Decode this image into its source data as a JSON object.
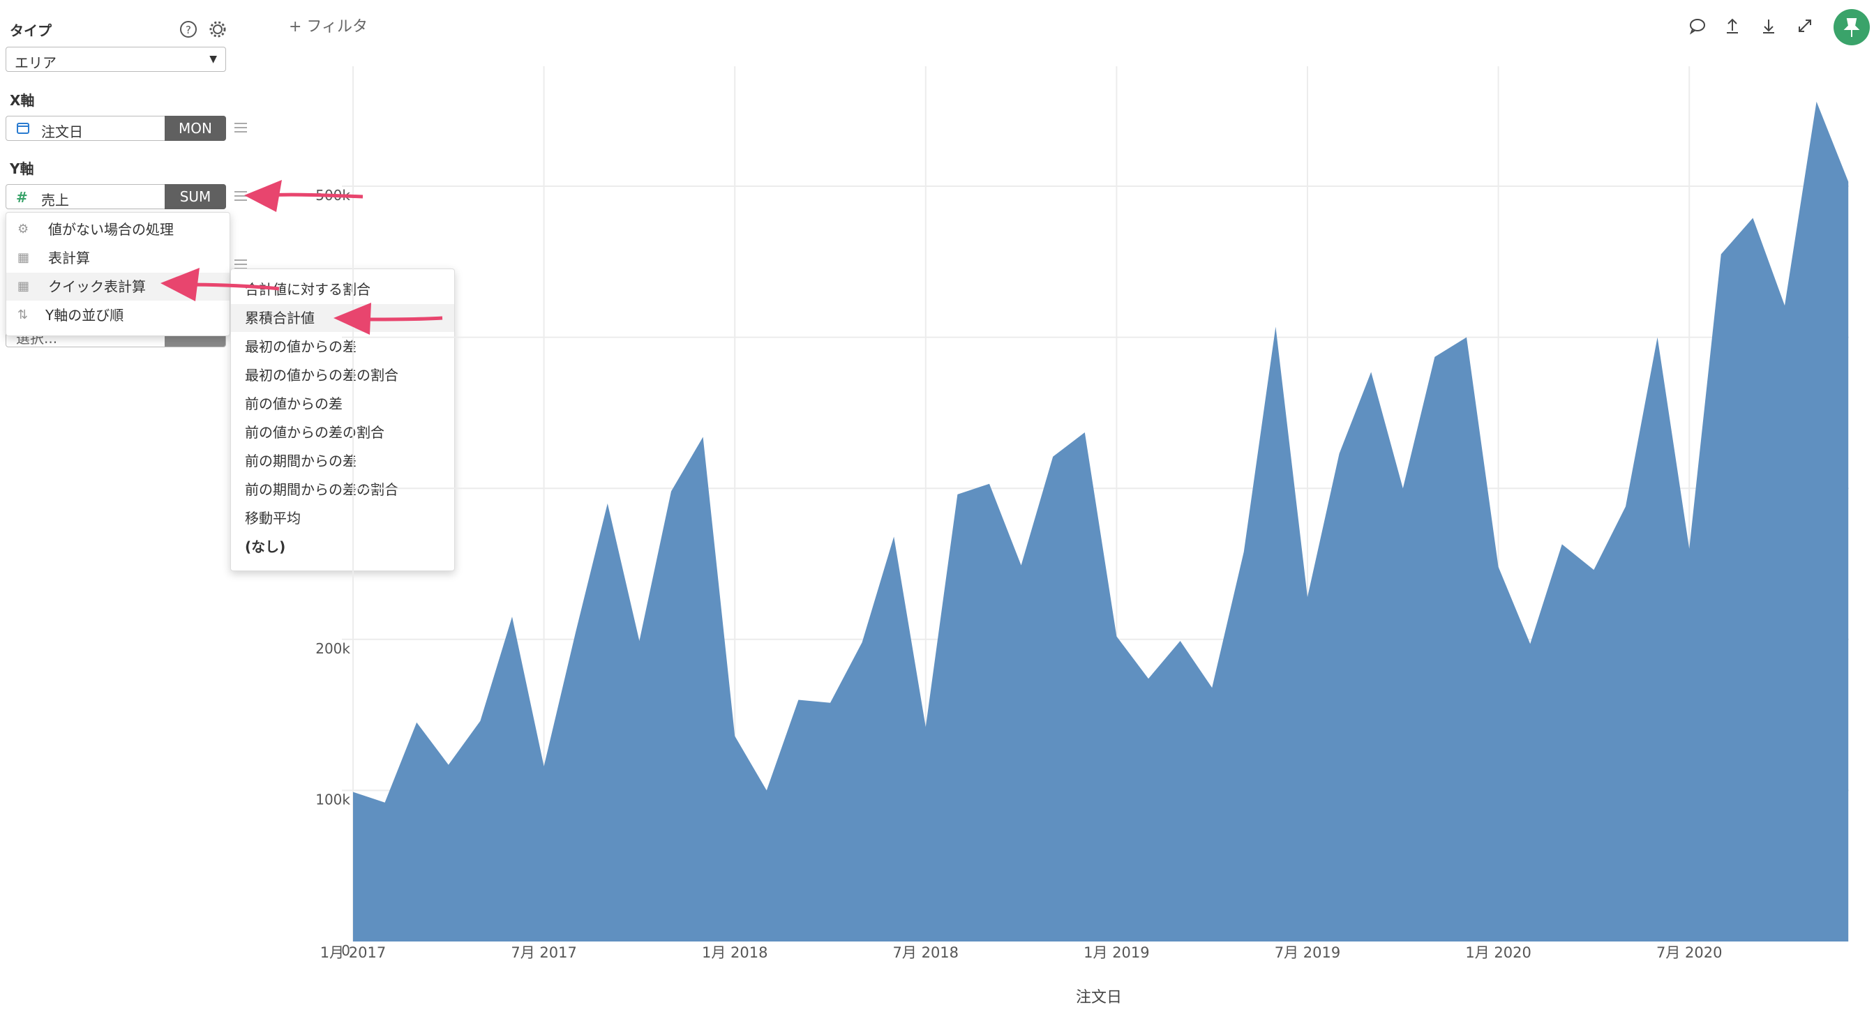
{
  "toolbar": {
    "filter_label": "+ フィルタ",
    "icons": [
      "comment-icon",
      "upload-icon",
      "download-icon",
      "expand-icon",
      "pin-icon"
    ],
    "pin_color": "#3aa36a"
  },
  "panel": {
    "type_label": "タイプ",
    "type_value": "エリア",
    "x_label": "X軸",
    "x_field": "注文日",
    "x_agg": "MON",
    "y_label": "Y軸",
    "y_field": "売上",
    "y_agg": "SUM",
    "hidden_field_text": "選択..."
  },
  "context_menu": {
    "items": [
      {
        "icon": "gear-icon",
        "label": "値がない場合の処理"
      },
      {
        "icon": "table-icon",
        "label": "表計算"
      },
      {
        "icon": "table-icon",
        "label": "クイック表計算"
      },
      {
        "icon": "sort-icon",
        "label": "Y軸の並び順"
      }
    ]
  },
  "submenu": {
    "items": [
      "合計値に対する割合",
      "累積合計値",
      "最初の値からの差",
      "最初の値からの差の割合",
      "前の値からの差",
      "前の値からの差の割合",
      "前の期間からの差",
      "前の期間からの差の割合",
      "移動平均",
      "(なし)"
    ],
    "highlighted": "累積合計値"
  },
  "colors": {
    "area": "#6090c0",
    "annotation_arrow": "#e8456e",
    "agg_badge": "#606060"
  },
  "chart_data": {
    "type": "area",
    "xlabel": "注文日",
    "ylabel": "",
    "x_tick_labels": [
      "1月 2017",
      "7月 2017",
      "1月 2018",
      "7月 2018",
      "1月 2019",
      "7月 2019",
      "1月 2020",
      "7月 2020"
    ],
    "y_tick_labels": [
      "0",
      "100k",
      "200k",
      "500k"
    ],
    "ylim": [
      0,
      500000
    ],
    "grid": true,
    "x": [
      "2017-01",
      "2017-02",
      "2017-03",
      "2017-04",
      "2017-05",
      "2017-06",
      "2017-07",
      "2017-08",
      "2017-09",
      "2017-10",
      "2017-11",
      "2017-12",
      "2018-01",
      "2018-02",
      "2018-03",
      "2018-04",
      "2018-05",
      "2018-06",
      "2018-07",
      "2018-08",
      "2018-09",
      "2018-10",
      "2018-11",
      "2018-12",
      "2019-01",
      "2019-02",
      "2019-03",
      "2019-04",
      "2019-05",
      "2019-06",
      "2019-07",
      "2019-08",
      "2019-09",
      "2019-10",
      "2019-11",
      "2019-12",
      "2020-01",
      "2020-02",
      "2020-03",
      "2020-04",
      "2020-05",
      "2020-06",
      "2020-07",
      "2020-08",
      "2020-09",
      "2020-10",
      "2020-11",
      "2020-12"
    ],
    "series": [
      {
        "values": [
          99000,
          92000,
          145000,
          117000,
          146000,
          215000,
          116000,
          205000,
          290000,
          199000,
          298000,
          334000,
          136000,
          100000,
          160000,
          158000,
          198000,
          268000,
          142000,
          296000,
          303000,
          249000,
          321000,
          337000,
          202000,
          174000,
          199000,
          168000,
          258000,
          407000,
          228000,
          323000,
          377000,
          300000,
          387000,
          400000,
          248000,
          197000,
          263000,
          246000,
          288000,
          400000,
          260000,
          455000,
          479000,
          421000,
          556000,
          503000
        ]
      }
    ]
  }
}
